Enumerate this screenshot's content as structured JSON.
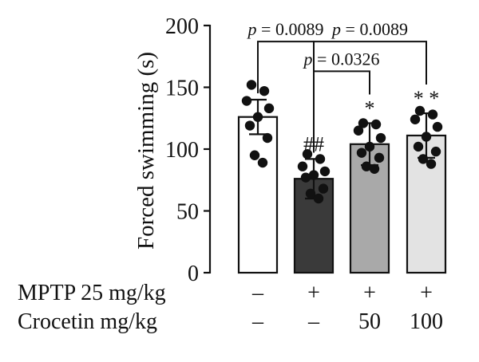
{
  "chart_data": {
    "type": "bar",
    "ylabel": "Forced swimming (s)",
    "ylim": [
      0,
      200
    ],
    "yticks": [
      0,
      50,
      100,
      150,
      200
    ],
    "bars": [
      {
        "value": 126,
        "err": 14,
        "fill": "#ffffff",
        "sig": "",
        "points": [
          152,
          147,
          139,
          133,
          126,
          119,
          109,
          95,
          89
        ]
      },
      {
        "value": 76,
        "err": 16,
        "fill": "#3a3a3a",
        "sig": "##",
        "points": [
          96,
          92,
          86,
          82,
          79,
          77,
          68,
          64,
          60
        ]
      },
      {
        "value": 104,
        "err": 17,
        "fill": "#a9a9a9",
        "sig": "*",
        "points": [
          121,
          120,
          115,
          109,
          102,
          97,
          93,
          86,
          84
        ]
      },
      {
        "value": 111,
        "err": 18,
        "fill": "#e3e3e3",
        "sig": "* *",
        "points": [
          131,
          128,
          124,
          118,
          110,
          102,
          98,
          92,
          88
        ]
      }
    ],
    "comparisons": [
      {
        "from": 0,
        "to": 1,
        "label_p": "p",
        "label_rest": " = 0.0089",
        "level": 187
      },
      {
        "from": 1,
        "to": 3,
        "label_p": "p",
        "label_rest": " = 0.0089",
        "level": 187
      },
      {
        "from": 1,
        "to": 2,
        "label_p": "p",
        "label_rest": " = 0.0326",
        "level": 163
      }
    ],
    "treatments": [
      {
        "label": "MPTP 25 mg/kg",
        "values": [
          "–",
          "+",
          "+",
          "+"
        ]
      },
      {
        "label": "Crocetin mg/kg",
        "values": [
          "–",
          "–",
          "50",
          "100"
        ]
      }
    ]
  }
}
